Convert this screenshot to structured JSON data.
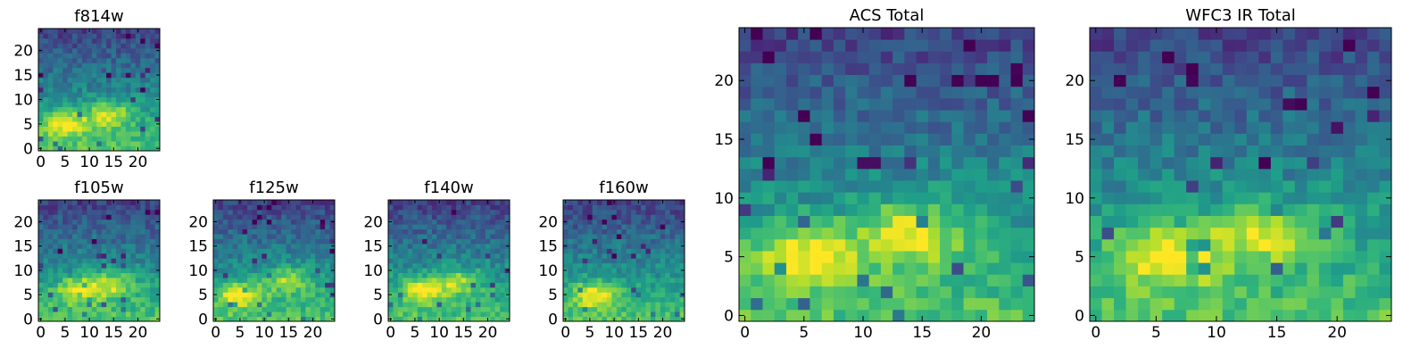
{
  "colormap": "viridis",
  "chart_data": [
    {
      "type": "heatmap",
      "title": "f814w",
      "x_ticks": [
        "0",
        "5",
        "10",
        "15",
        "20"
      ],
      "y_ticks": [
        "0",
        "5",
        "10",
        "15",
        "20"
      ],
      "xlim": [
        0,
        25
      ],
      "ylim": [
        0,
        25
      ],
      "grid": false,
      "peaks": [
        {
          "x": 5,
          "y": 5,
          "intensity": 0.95
        },
        {
          "x": 14,
          "y": 7,
          "intensity": 0.85
        }
      ]
    },
    {
      "type": "heatmap",
      "title": "f105w",
      "x_ticks": [
        "0",
        "5",
        "10",
        "15",
        "20"
      ],
      "y_ticks": [
        "0",
        "5",
        "10",
        "15",
        "20"
      ],
      "xlim": [
        0,
        25
      ],
      "ylim": [
        0,
        25
      ],
      "grid": false,
      "peaks": [
        {
          "x": 8,
          "y": 6,
          "intensity": 0.95
        },
        {
          "x": 15,
          "y": 7,
          "intensity": 0.7
        }
      ]
    },
    {
      "type": "heatmap",
      "title": "f125w",
      "x_ticks": [
        "0",
        "5",
        "10",
        "15",
        "20"
      ],
      "y_ticks": [
        "0",
        "5",
        "10",
        "15",
        "20"
      ],
      "xlim": [
        0,
        25
      ],
      "ylim": [
        0,
        25
      ],
      "grid": false,
      "peaks": [
        {
          "x": 5,
          "y": 5,
          "intensity": 0.95
        },
        {
          "x": 15,
          "y": 8,
          "intensity": 0.75
        }
      ]
    },
    {
      "type": "heatmap",
      "title": "f140w",
      "x_ticks": [
        "0",
        "5",
        "10",
        "15",
        "20"
      ],
      "y_ticks": [
        "0",
        "5",
        "10",
        "15",
        "20"
      ],
      "xlim": [
        0,
        25
      ],
      "ylim": [
        0,
        25
      ],
      "grid": false,
      "peaks": [
        {
          "x": 7,
          "y": 6,
          "intensity": 0.95
        },
        {
          "x": 14,
          "y": 8,
          "intensity": 0.7
        }
      ]
    },
    {
      "type": "heatmap",
      "title": "f160w",
      "x_ticks": [
        "0",
        "5",
        "10",
        "15",
        "20"
      ],
      "y_ticks": [
        "0",
        "5",
        "10",
        "15",
        "20"
      ],
      "xlim": [
        0,
        25
      ],
      "ylim": [
        0,
        25
      ],
      "grid": false,
      "peaks": [
        {
          "x": 6,
          "y": 5,
          "intensity": 0.95
        }
      ]
    },
    {
      "type": "heatmap",
      "title": "ACS Total",
      "x_ticks": [
        "0",
        "5",
        "10",
        "15",
        "20"
      ],
      "y_ticks": [
        "0",
        "5",
        "10",
        "15",
        "20"
      ],
      "xlim": [
        0,
        25
      ],
      "ylim": [
        0,
        25
      ],
      "grid": false,
      "peaks": [
        {
          "x": 5,
          "y": 5,
          "intensity": 0.95
        },
        {
          "x": 14,
          "y": 7,
          "intensity": 0.9
        }
      ]
    },
    {
      "type": "heatmap",
      "title": "WFC3 IR Total",
      "x_ticks": [
        "0",
        "5",
        "10",
        "15",
        "20"
      ],
      "y_ticks": [
        "0",
        "5",
        "10",
        "15",
        "20"
      ],
      "xlim": [
        0,
        25
      ],
      "ylim": [
        0,
        25
      ],
      "grid": false,
      "peaks": [
        {
          "x": 6,
          "y": 5,
          "intensity": 0.95
        },
        {
          "x": 14,
          "y": 7,
          "intensity": 0.8
        }
      ]
    }
  ]
}
